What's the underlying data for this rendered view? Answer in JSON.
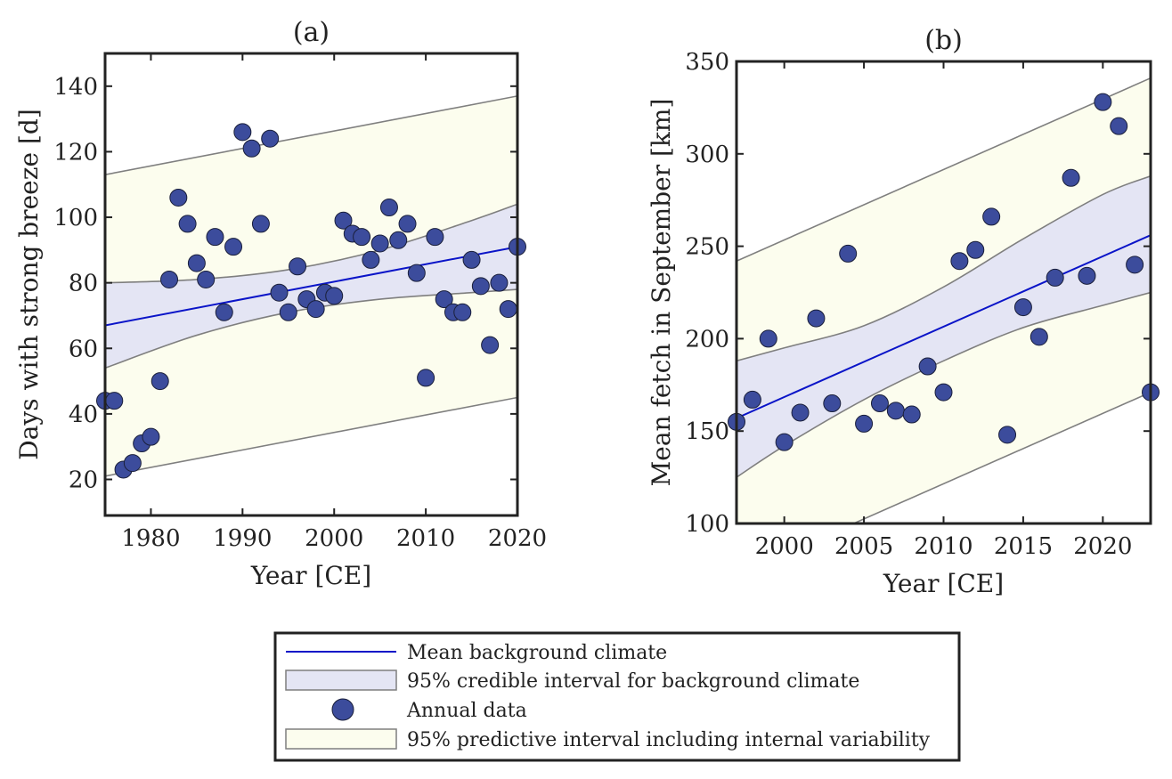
{
  "chart_data": [
    {
      "type": "scatter",
      "title": "(a)",
      "xlabel": "Year [CE]",
      "ylabel": "Days with strong breeze [d]",
      "xlim": [
        1975,
        2020
      ],
      "ylim": [
        9,
        150
      ],
      "xticks": [
        1980,
        1990,
        2000,
        2010,
        2020
      ],
      "yticks": [
        20,
        40,
        60,
        80,
        100,
        120,
        140
      ],
      "grid": false,
      "mean_line": {
        "x": [
          1975,
          2020
        ],
        "y": [
          67,
          91
        ]
      },
      "credible_interval": {
        "x": [
          1975,
          1985,
          1995,
          2005,
          2015,
          2020
        ],
        "lower": [
          54,
          64,
          71,
          75,
          77,
          78
        ],
        "upper": [
          80,
          81,
          84,
          90,
          99,
          104
        ]
      },
      "predictive_interval": {
        "x": [
          1975,
          2020
        ],
        "lower": [
          21,
          45
        ],
        "upper": [
          113,
          137
        ]
      },
      "points": [
        [
          1975,
          44
        ],
        [
          1976,
          44
        ],
        [
          1977,
          23
        ],
        [
          1978,
          25
        ],
        [
          1979,
          31
        ],
        [
          1980,
          33
        ],
        [
          1981,
          50
        ],
        [
          1982,
          81
        ],
        [
          1983,
          106
        ],
        [
          1984,
          98
        ],
        [
          1985,
          86
        ],
        [
          1986,
          81
        ],
        [
          1987,
          94
        ],
        [
          1988,
          71
        ],
        [
          1989,
          91
        ],
        [
          1990,
          126
        ],
        [
          1991,
          121
        ],
        [
          1992,
          98
        ],
        [
          1993,
          124
        ],
        [
          1994,
          77
        ],
        [
          1995,
          71
        ],
        [
          1996,
          85
        ],
        [
          1997,
          75
        ],
        [
          1998,
          72
        ],
        [
          1999,
          77
        ],
        [
          2000,
          76
        ],
        [
          2001,
          99
        ],
        [
          2002,
          95
        ],
        [
          2003,
          94
        ],
        [
          2004,
          87
        ],
        [
          2005,
          92
        ],
        [
          2006,
          103
        ],
        [
          2007,
          93
        ],
        [
          2008,
          98
        ],
        [
          2009,
          83
        ],
        [
          2010,
          51
        ],
        [
          2011,
          94
        ],
        [
          2012,
          75
        ],
        [
          2013,
          71
        ],
        [
          2014,
          71
        ],
        [
          2015,
          87
        ],
        [
          2016,
          79
        ],
        [
          2017,
          61
        ],
        [
          2018,
          80
        ],
        [
          2019,
          72
        ],
        [
          2020,
          91
        ]
      ]
    },
    {
      "type": "scatter",
      "title": "(b)",
      "xlabel": "Year [CE]",
      "ylabel": "Mean fetch in September [km]",
      "xlim": [
        1997,
        2023
      ],
      "ylim": [
        100,
        350
      ],
      "xticks": [
        2000,
        2005,
        2010,
        2015,
        2020
      ],
      "yticks": [
        100,
        150,
        200,
        250,
        300,
        350
      ],
      "grid": false,
      "mean_line": {
        "x": [
          1997,
          2023
        ],
        "y": [
          157,
          256
        ]
      },
      "credible_interval": {
        "x": [
          1997,
          2000,
          2005,
          2010,
          2015,
          2020,
          2023
        ],
        "lower": [
          125,
          142,
          167,
          188,
          206,
          218,
          225
        ],
        "upper": [
          188,
          195,
          207,
          228,
          254,
          278,
          288
        ]
      },
      "predictive_interval": {
        "x": [
          1997,
          2023
        ],
        "lower": [
          72,
          171
        ],
        "upper": [
          242,
          341
        ]
      },
      "points": [
        [
          1997,
          155
        ],
        [
          1998,
          167
        ],
        [
          1999,
          200
        ],
        [
          2000,
          144
        ],
        [
          2001,
          160
        ],
        [
          2002,
          211
        ],
        [
          2003,
          165
        ],
        [
          2004,
          246
        ],
        [
          2005,
          154
        ],
        [
          2006,
          165
        ],
        [
          2007,
          161
        ],
        [
          2008,
          159
        ],
        [
          2009,
          185
        ],
        [
          2010,
          171
        ],
        [
          2011,
          242
        ],
        [
          2012,
          248
        ],
        [
          2013,
          266
        ],
        [
          2014,
          148
        ],
        [
          2015,
          217
        ],
        [
          2016,
          201
        ],
        [
          2017,
          233
        ],
        [
          2018,
          287
        ],
        [
          2019,
          234
        ],
        [
          2020,
          328
        ],
        [
          2021,
          315
        ],
        [
          2022,
          240
        ],
        [
          2023,
          171
        ]
      ]
    }
  ],
  "legend": {
    "position": "bottom-center",
    "items": [
      {
        "label": "Mean background climate"
      },
      {
        "label": "95% credible interval for background climate"
      },
      {
        "label": "Annual data"
      },
      {
        "label": "95% predictive interval including internal variability"
      }
    ]
  },
  "colors": {
    "mean_line": "#0a14c8",
    "credible_fill": "#e4e5f4",
    "predictive_fill": "#fcfdee",
    "band_edge": "#7f7f7f",
    "marker_fill": "#3c4c9c",
    "marker_edge": "#1a1f3a",
    "axis": "#222222"
  }
}
